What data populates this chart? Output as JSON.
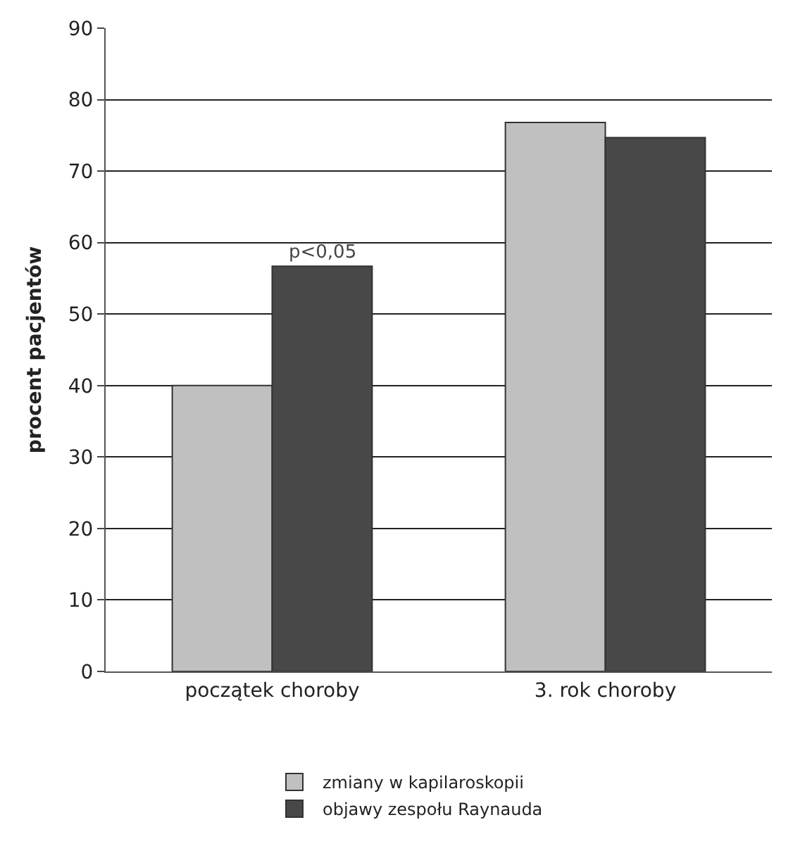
{
  "chart_data": {
    "type": "bar",
    "ylabel": "procent pacjentów",
    "categories": [
      "początek choroby",
      "3. rok choroby"
    ],
    "series": [
      {
        "name": "zmiany w kapilaroskopii",
        "color": "#c0c0c0",
        "values": [
          40,
          76.8
        ]
      },
      {
        "name": "objawy zespołu Raynauda",
        "color": "#484848",
        "values": [
          56.7,
          74.7
        ]
      }
    ],
    "ylim": [
      0,
      90
    ],
    "yticks": [
      0,
      10,
      20,
      30,
      40,
      50,
      60,
      70,
      80,
      90
    ],
    "grid": "y",
    "legend": "bottom",
    "annotations": [
      {
        "text": "p<0,05",
        "x": "początek choroby",
        "y": 56.7
      }
    ]
  }
}
